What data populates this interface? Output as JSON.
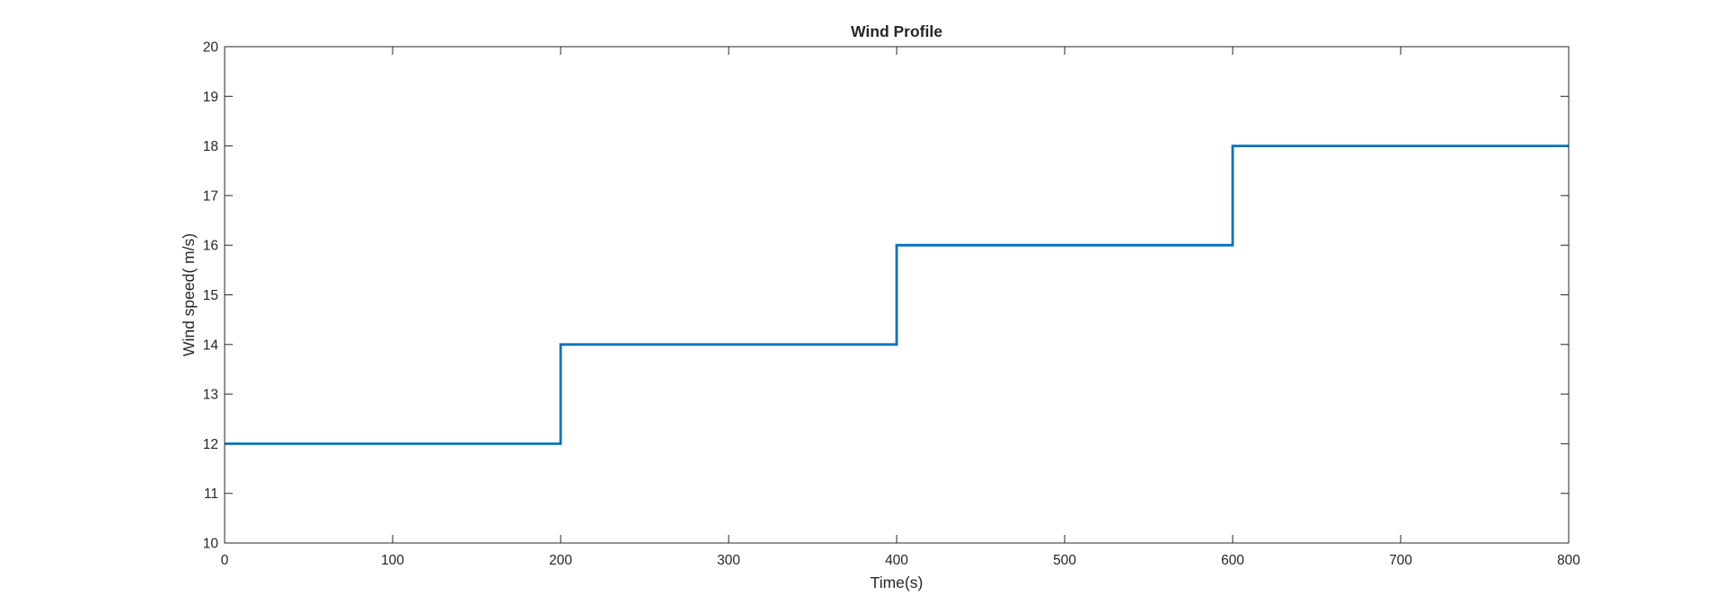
{
  "chart_data": {
    "type": "line",
    "title": "Wind Profile",
    "xlabel": "Time(s)",
    "ylabel": "Wind speed( m/s)",
    "xlim": [
      0,
      800
    ],
    "ylim": [
      10,
      20
    ],
    "x_ticks": [
      0,
      100,
      200,
      300,
      400,
      500,
      600,
      700,
      800
    ],
    "y_ticks": [
      10,
      11,
      12,
      13,
      14,
      15,
      16,
      17,
      18,
      19,
      20
    ],
    "grid": false,
    "box": true,
    "series": [
      {
        "color": "#0072BD",
        "x": [
          0,
          200,
          200,
          400,
          400,
          600,
          600,
          800
        ],
        "y": [
          12,
          12,
          14,
          14,
          16,
          16,
          18,
          18
        ]
      }
    ]
  }
}
